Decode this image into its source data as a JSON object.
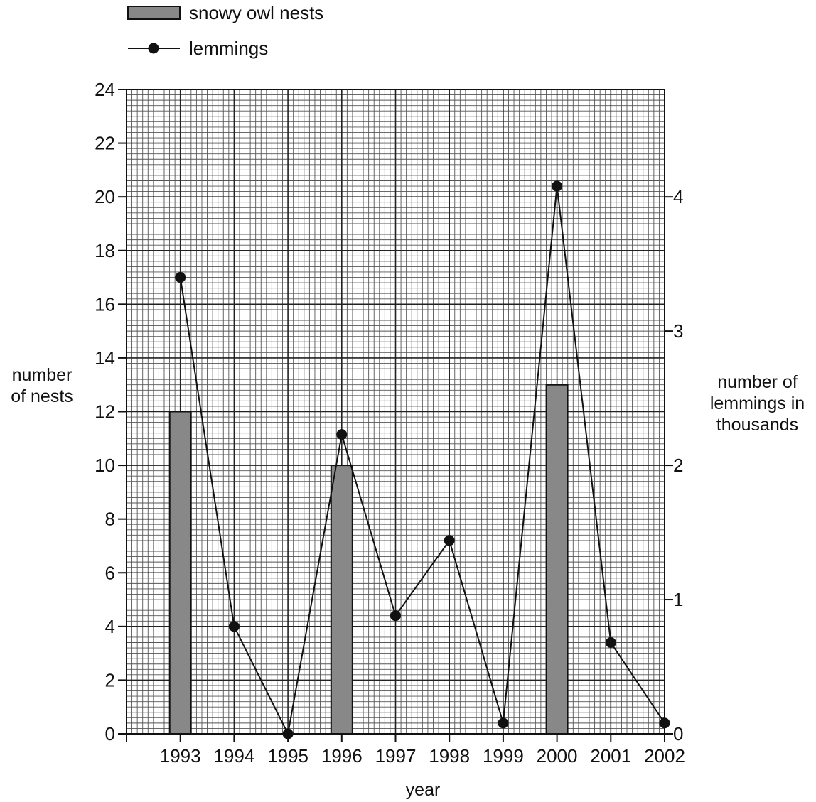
{
  "chart_data": {
    "type": "bar",
    "legend": {
      "position": "top-left",
      "entries": [
        {
          "label": "snowy owl nests",
          "kind": "bar"
        },
        {
          "label": "lemmings",
          "kind": "line-with-marker"
        }
      ]
    },
    "x": [
      "1993",
      "1994",
      "1995",
      "1996",
      "1997",
      "1998",
      "1999",
      "2000",
      "2001",
      "2002"
    ],
    "xlabel": "year",
    "ylabel": "number\nof nests",
    "y2label": "number of\nlemmings in\nthousands",
    "ylim": [
      0,
      24
    ],
    "y_ticks": [
      0,
      2,
      4,
      6,
      8,
      10,
      12,
      14,
      16,
      18,
      20,
      22,
      24
    ],
    "y2lim": [
      0,
      4.8
    ],
    "y2_ticks": [
      0,
      1,
      2,
      3,
      4
    ],
    "grid": true,
    "series": [
      {
        "name": "snowy owl nests",
        "type": "bar",
        "axis": "left",
        "color": "#888888",
        "values": [
          12,
          null,
          null,
          10,
          null,
          null,
          null,
          13,
          null,
          null
        ]
      },
      {
        "name": "lemmings",
        "type": "line",
        "axis": "right",
        "color": "#111111",
        "values": [
          3.4,
          0.8,
          0.0,
          2.23,
          0.88,
          1.44,
          0.08,
          4.08,
          0.68,
          0.08
        ]
      }
    ]
  }
}
